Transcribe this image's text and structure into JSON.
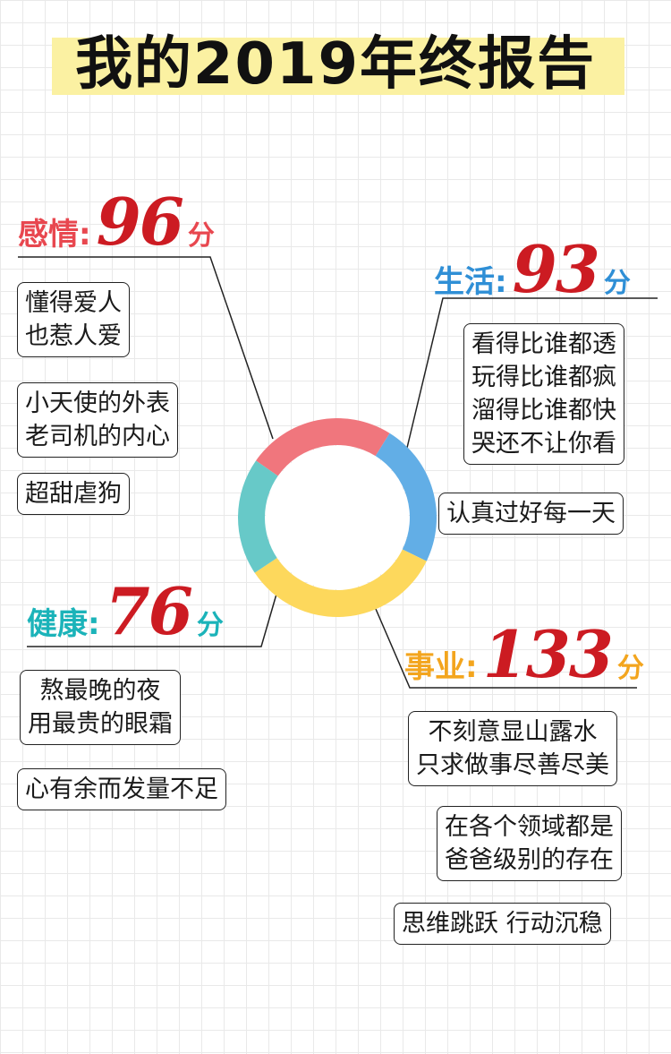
{
  "title": "我的2019年终报告",
  "colors": {
    "love": "#f0767d",
    "life": "#62aee6",
    "career": "#fdd85c",
    "health": "#67c9c8",
    "score": "#cc1b22",
    "title_band": "#fbf1a2"
  },
  "chart_data": {
    "type": "pie",
    "donut": true,
    "segments": [
      {
        "name": "感情",
        "value": 96,
        "color": "#f0767d"
      },
      {
        "name": "生活",
        "value": 93,
        "color": "#62aee6"
      },
      {
        "name": "事业",
        "value": 133,
        "color": "#fdd85c"
      },
      {
        "name": "健康",
        "value": 76,
        "color": "#67c9c8"
      }
    ]
  },
  "love": {
    "label": "感情:",
    "score": "96",
    "unit": "分",
    "notes": [
      [
        "懂得爱人",
        "也惹人爱"
      ],
      [
        "小天使的外表",
        "老司机的内心"
      ],
      [
        "超甜虐狗"
      ]
    ]
  },
  "life": {
    "label": "生活:",
    "score": "93",
    "unit": "分",
    "notes": [
      [
        "看得比谁都透",
        "玩得比谁都疯",
        "溜得比谁都快",
        "哭还不让你看"
      ],
      [
        "认真过好每一天"
      ]
    ]
  },
  "health": {
    "label": "健康:",
    "score": "76",
    "unit": "分",
    "notes": [
      [
        "熬最晚的夜",
        "用最贵的眼霜"
      ],
      [
        "心有余而发量不足"
      ]
    ]
  },
  "career": {
    "label": "事业:",
    "score": "133",
    "unit": "分",
    "notes": [
      [
        "不刻意显山露水",
        "只求做事尽善尽美"
      ],
      [
        "在各个领域都是",
        "爸爸级别的存在"
      ],
      [
        "思维跳跃 行动沉稳"
      ]
    ]
  }
}
